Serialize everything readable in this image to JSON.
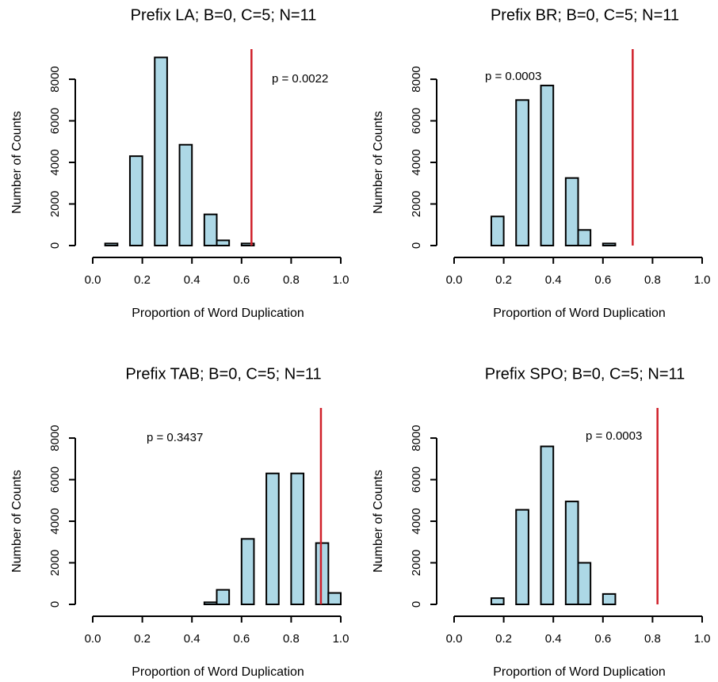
{
  "chart_data": [
    {
      "type": "histogram",
      "title": "Prefix LA; B=0, C=5; N=11",
      "x_label": "Proportion of Word Duplication",
      "y_label": "Number of Counts",
      "bins": [
        0.05,
        0.1,
        0.15,
        0.2,
        0.25,
        0.3,
        0.35,
        0.4,
        0.45,
        0.5,
        0.55,
        0.6,
        0.65
      ],
      "values": [
        100,
        0,
        4300,
        0,
        9050,
        0,
        4850,
        0,
        1500,
        250,
        0,
        100
      ],
      "color": "#add8e6",
      "edge_color": "#000000",
      "vline": 0.64,
      "vline_color": "#d0202a",
      "annotation": "p = 0.0022",
      "xlim": [
        0,
        1
      ],
      "xticks": [
        {
          "value": 0,
          "label": "0.0"
        },
        0.2,
        0.4,
        0.6,
        0.8,
        {
          "value": 1,
          "label": "1.0"
        }
      ],
      "ylim": [
        0,
        9450
      ],
      "yticks": [
        0,
        2000,
        4000,
        6000,
        8000
      ]
    },
    {
      "type": "histogram",
      "title": "Prefix BR; B=0, C=5; N=11",
      "x_label": "Proportion of Word Duplication",
      "y_label": "Number of Counts",
      "bins": [
        0.15,
        0.2,
        0.25,
        0.3,
        0.35,
        0.4,
        0.45,
        0.5,
        0.55,
        0.6,
        0.65,
        0.7,
        0.75,
        0.8,
        0.85
      ],
      "values": [
        1400,
        0,
        7000,
        0,
        7700,
        0,
        3250,
        750,
        0,
        100,
        0,
        0,
        0,
        0
      ],
      "color": "#add8e6",
      "edge_color": "#000000",
      "vline": 0.72,
      "vline_color": "#d0202a",
      "annotation": "p = 0.0003",
      "xlim": [
        0,
        1
      ],
      "xticks": [
        {
          "value": 0,
          "label": "0.0"
        },
        0.2,
        0.4,
        0.6,
        0.8,
        {
          "value": 1,
          "label": "1.0"
        }
      ],
      "ylim": [
        0,
        9450
      ],
      "yticks": [
        0,
        2000,
        4000,
        6000,
        8000
      ]
    },
    {
      "type": "histogram",
      "title": "Prefix TAB; B=0, C=5; N=11",
      "x_label": "Proportion of Word Duplication",
      "y_label": "Number of Counts",
      "bins": [
        0.35,
        0.4,
        0.45,
        0.5,
        0.55,
        0.6,
        0.65,
        0.7,
        0.75,
        0.8,
        0.85,
        0.9,
        0.95,
        1.0
      ],
      "values": [
        0,
        0,
        100,
        700,
        0,
        3150,
        0,
        6300,
        0,
        6300,
        0,
        2950,
        550
      ],
      "color": "#add8e6",
      "edge_color": "#000000",
      "vline": 0.92,
      "vline_color": "#d0202a",
      "annotation": "p = 0.3437",
      "xlim": [
        0,
        1
      ],
      "xticks": [
        {
          "value": 0,
          "label": "0.0"
        },
        0.2,
        0.4,
        0.6,
        0.8,
        {
          "value": 1,
          "label": "1.0"
        }
      ],
      "ylim": [
        0,
        9450
      ],
      "yticks": [
        0,
        2000,
        4000,
        6000,
        8000
      ]
    },
    {
      "type": "histogram",
      "title": "Prefix SPO; B=0, C=5; N=11",
      "x_label": "Proportion of Word Duplication",
      "y_label": "Number of Counts",
      "bins": [
        0.15,
        0.2,
        0.25,
        0.3,
        0.35,
        0.4,
        0.45,
        0.5,
        0.55,
        0.6,
        0.65,
        0.7,
        0.75,
        0.8,
        0.85
      ],
      "values": [
        300,
        0,
        4550,
        0,
        7600,
        0,
        4950,
        2000,
        0,
        500,
        0,
        0,
        0,
        0
      ],
      "color": "#add8e6",
      "edge_color": "#000000",
      "vline": 0.82,
      "vline_color": "#d0202a",
      "annotation": "p = 0.0003",
      "xlim": [
        0,
        1
      ],
      "xticks": [
        {
          "value": 0,
          "label": "0.0"
        },
        0.2,
        0.4,
        0.6,
        0.8,
        {
          "value": 1,
          "label": "1.0"
        }
      ],
      "ylim": [
        0,
        9450
      ],
      "yticks": [
        0,
        2000,
        4000,
        6000,
        8000
      ]
    }
  ]
}
